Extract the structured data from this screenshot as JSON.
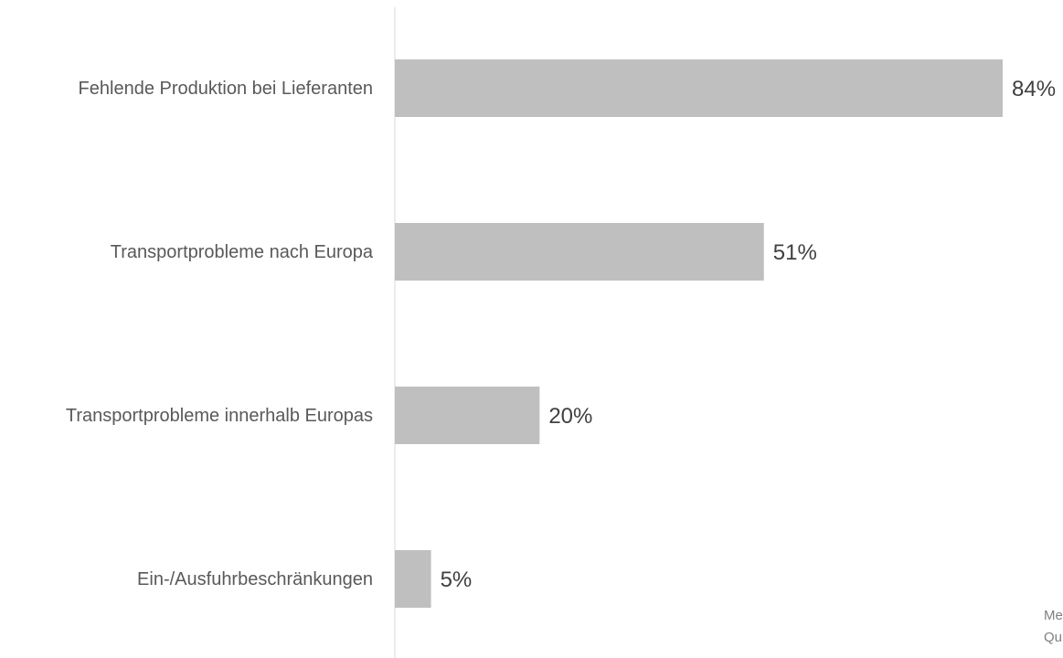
{
  "chart_data": {
    "type": "bar",
    "orientation": "horizontal",
    "categories": [
      "Fehlende Produktion bei Lieferanten",
      "Transportprobleme nach Europa",
      "Transportprobleme innerhalb Europas",
      "Ein-/Ausfuhrbeschränkungen"
    ],
    "values": [
      84,
      51,
      20,
      5
    ],
    "value_labels": [
      "84%",
      "51%",
      "20%",
      "5%"
    ],
    "color": "#bfbfbf",
    "notes": [
      "Me",
      "Qu"
    ]
  }
}
